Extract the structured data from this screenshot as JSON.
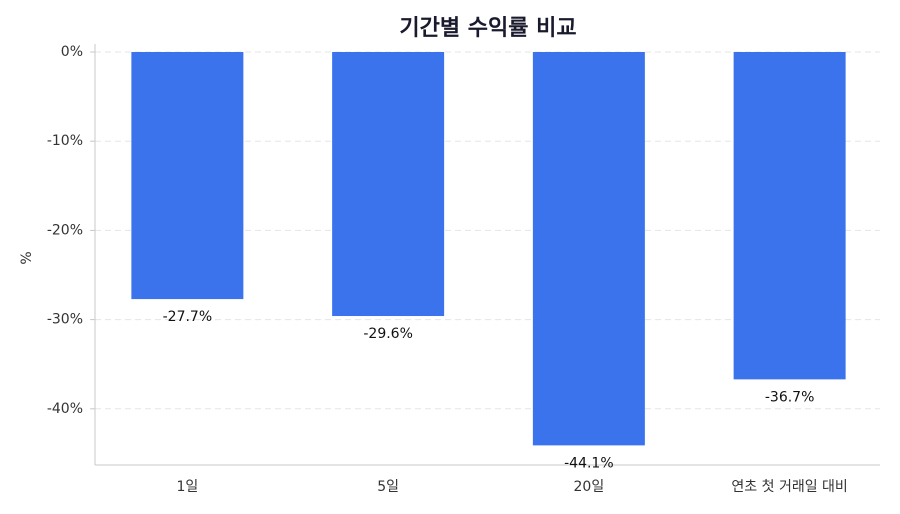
{
  "chart_data": {
    "type": "bar",
    "title": "기간별 수익률 비교",
    "y_label": "%",
    "categories": [
      "1일",
      "5일",
      "20일",
      "연초 첫 거래일 대비"
    ],
    "values": [
      -27.7,
      -29.6,
      -44.1,
      -36.7
    ],
    "value_labels": [
      "-27.7%",
      "-29.6%",
      "-44.1%",
      "-36.7%"
    ],
    "color": "#3b73ed",
    "ylim": [
      -46.3,
      0
    ],
    "yticks": [
      {
        "value": 0,
        "label": "0%"
      },
      {
        "value": -10,
        "label": "-10%"
      },
      {
        "value": -20,
        "label": "-20%"
      },
      {
        "value": -30,
        "label": "-30%"
      },
      {
        "value": -40,
        "label": "-40%"
      }
    ],
    "grid": true
  }
}
